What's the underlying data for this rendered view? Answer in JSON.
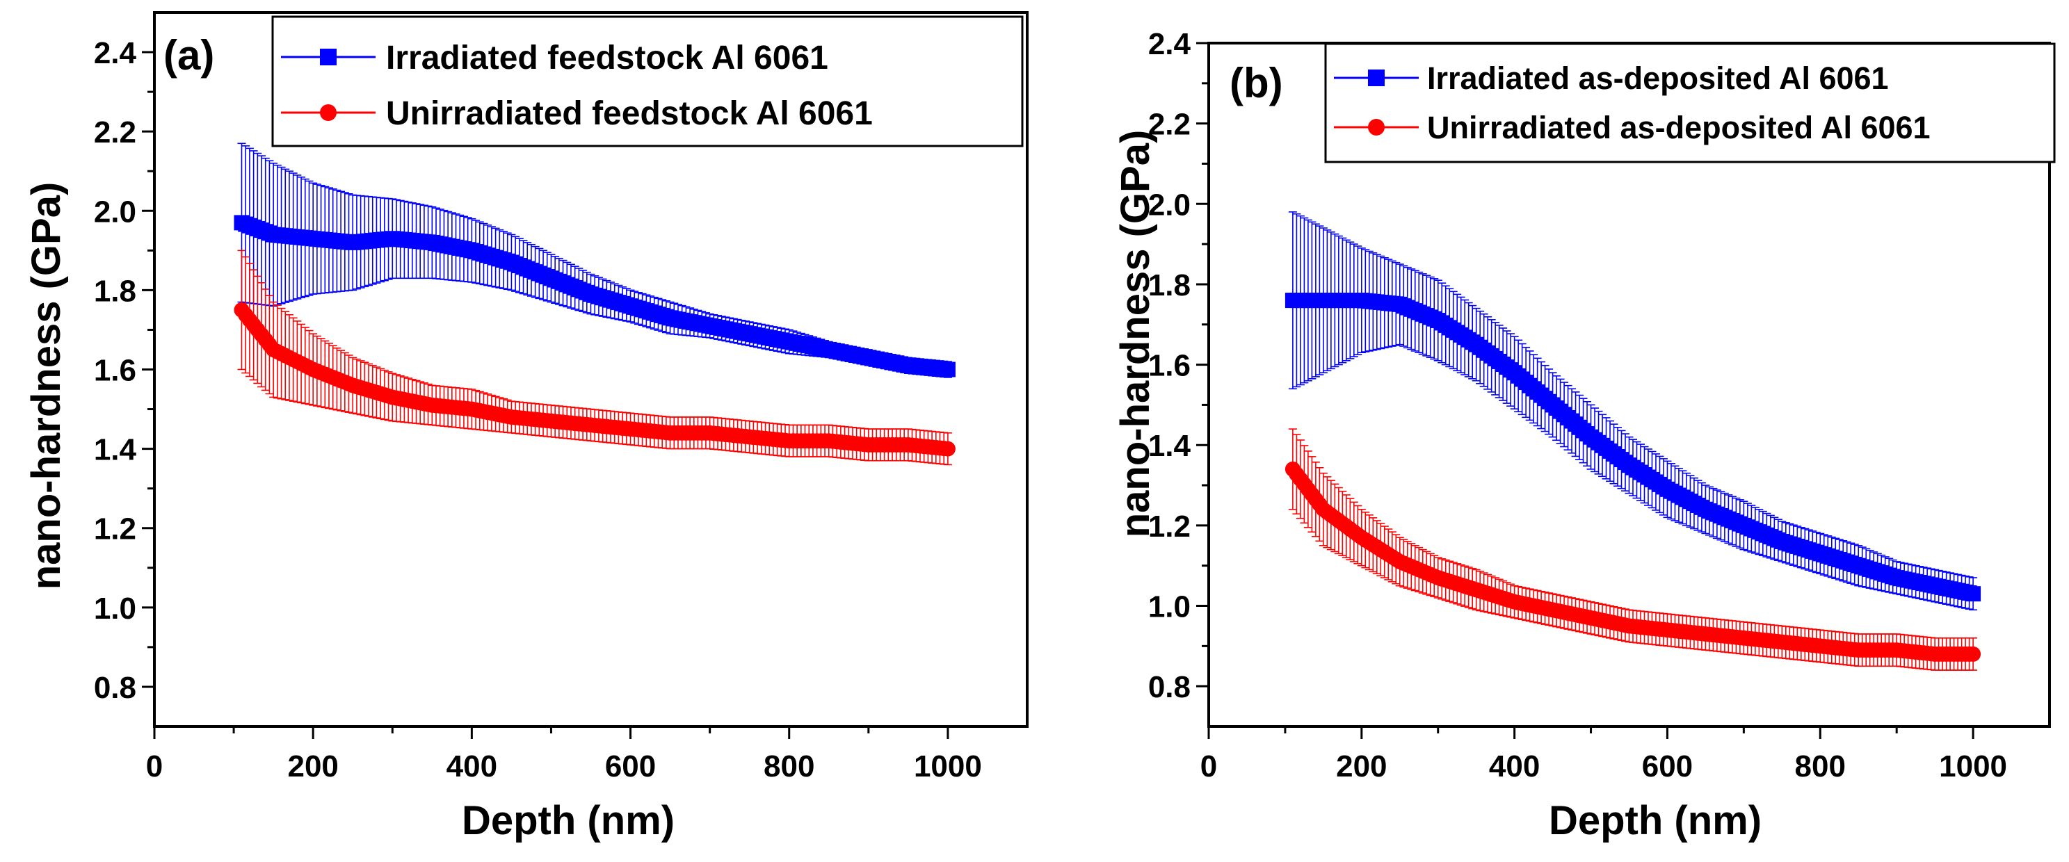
{
  "chart_data": [
    {
      "type": "scatter",
      "panel_label": "(a)",
      "xlabel": "Depth (nm)",
      "ylabel": "nano-hardness (GPa)",
      "xlim": [
        0,
        1100
      ],
      "ylim": [
        0.7,
        2.5
      ],
      "xticks": [
        0,
        200,
        400,
        600,
        800,
        1000
      ],
      "yticks": [
        0.8,
        1.0,
        1.2,
        1.4,
        1.6,
        1.8,
        2.0,
        2.2,
        2.4
      ],
      "legend_position": "top-right",
      "series": [
        {
          "name": "Irradiated feedstock Al 6061",
          "color": "#0000ff",
          "marker": "square",
          "x": [
            110,
            150,
            200,
            250,
            300,
            350,
            400,
            450,
            500,
            550,
            600,
            650,
            700,
            750,
            800,
            850,
            900,
            950,
            1000
          ],
          "y": [
            1.97,
            1.94,
            1.93,
            1.92,
            1.93,
            1.92,
            1.9,
            1.87,
            1.83,
            1.79,
            1.76,
            1.73,
            1.71,
            1.69,
            1.67,
            1.65,
            1.63,
            1.61,
            1.6
          ],
          "err": [
            0.2,
            0.18,
            0.14,
            0.12,
            0.1,
            0.09,
            0.08,
            0.07,
            0.06,
            0.05,
            0.04,
            0.04,
            0.03,
            0.03,
            0.03,
            0.02,
            0.02,
            0.02,
            0.02
          ]
        },
        {
          "name": "Unirradiated feedstock Al 6061",
          "color": "#ff0000",
          "marker": "circle",
          "x": [
            110,
            150,
            200,
            250,
            300,
            350,
            400,
            450,
            500,
            550,
            600,
            650,
            700,
            750,
            800,
            850,
            900,
            950,
            1000
          ],
          "y": [
            1.75,
            1.65,
            1.6,
            1.56,
            1.53,
            1.51,
            1.5,
            1.48,
            1.47,
            1.46,
            1.45,
            1.44,
            1.44,
            1.43,
            1.42,
            1.42,
            1.41,
            1.41,
            1.4
          ],
          "err": [
            0.15,
            0.12,
            0.09,
            0.07,
            0.06,
            0.05,
            0.05,
            0.04,
            0.04,
            0.04,
            0.04,
            0.04,
            0.04,
            0.04,
            0.04,
            0.04,
            0.04,
            0.04,
            0.04
          ]
        }
      ]
    },
    {
      "type": "scatter",
      "panel_label": "(b)",
      "xlabel": "Depth (nm)",
      "ylabel": "nano-hardness (GPa)",
      "xlim": [
        0,
        1100
      ],
      "ylim": [
        0.7,
        2.4
      ],
      "xticks": [
        0,
        200,
        400,
        600,
        800,
        1000
      ],
      "yticks": [
        0.8,
        1.0,
        1.2,
        1.4,
        1.6,
        1.8,
        2.0,
        2.2,
        2.4
      ],
      "legend_position": "top-right",
      "series": [
        {
          "name": "Irradiated as-deposited Al 6061",
          "color": "#0000ff",
          "marker": "square",
          "x": [
            110,
            150,
            200,
            250,
            300,
            350,
            400,
            450,
            500,
            550,
            600,
            650,
            700,
            750,
            800,
            850,
            900,
            950,
            1000
          ],
          "y": [
            1.76,
            1.76,
            1.76,
            1.75,
            1.71,
            1.65,
            1.58,
            1.5,
            1.42,
            1.35,
            1.29,
            1.24,
            1.2,
            1.16,
            1.13,
            1.1,
            1.07,
            1.05,
            1.03
          ],
          "err": [
            0.22,
            0.18,
            0.13,
            0.1,
            0.1,
            0.09,
            0.09,
            0.08,
            0.08,
            0.07,
            0.07,
            0.06,
            0.06,
            0.05,
            0.05,
            0.05,
            0.04,
            0.04,
            0.04
          ]
        },
        {
          "name": "Unirradiated as-deposited Al 6061",
          "color": "#ff0000",
          "marker": "circle",
          "x": [
            110,
            150,
            200,
            250,
            300,
            350,
            400,
            450,
            500,
            550,
            600,
            650,
            700,
            750,
            800,
            850,
            900,
            950,
            1000
          ],
          "y": [
            1.34,
            1.24,
            1.17,
            1.11,
            1.07,
            1.04,
            1.01,
            0.99,
            0.97,
            0.95,
            0.94,
            0.93,
            0.92,
            0.91,
            0.9,
            0.89,
            0.89,
            0.88,
            0.88
          ],
          "err": [
            0.1,
            0.09,
            0.07,
            0.06,
            0.05,
            0.05,
            0.04,
            0.04,
            0.04,
            0.04,
            0.04,
            0.04,
            0.04,
            0.04,
            0.04,
            0.04,
            0.04,
            0.04,
            0.04
          ]
        }
      ]
    }
  ]
}
